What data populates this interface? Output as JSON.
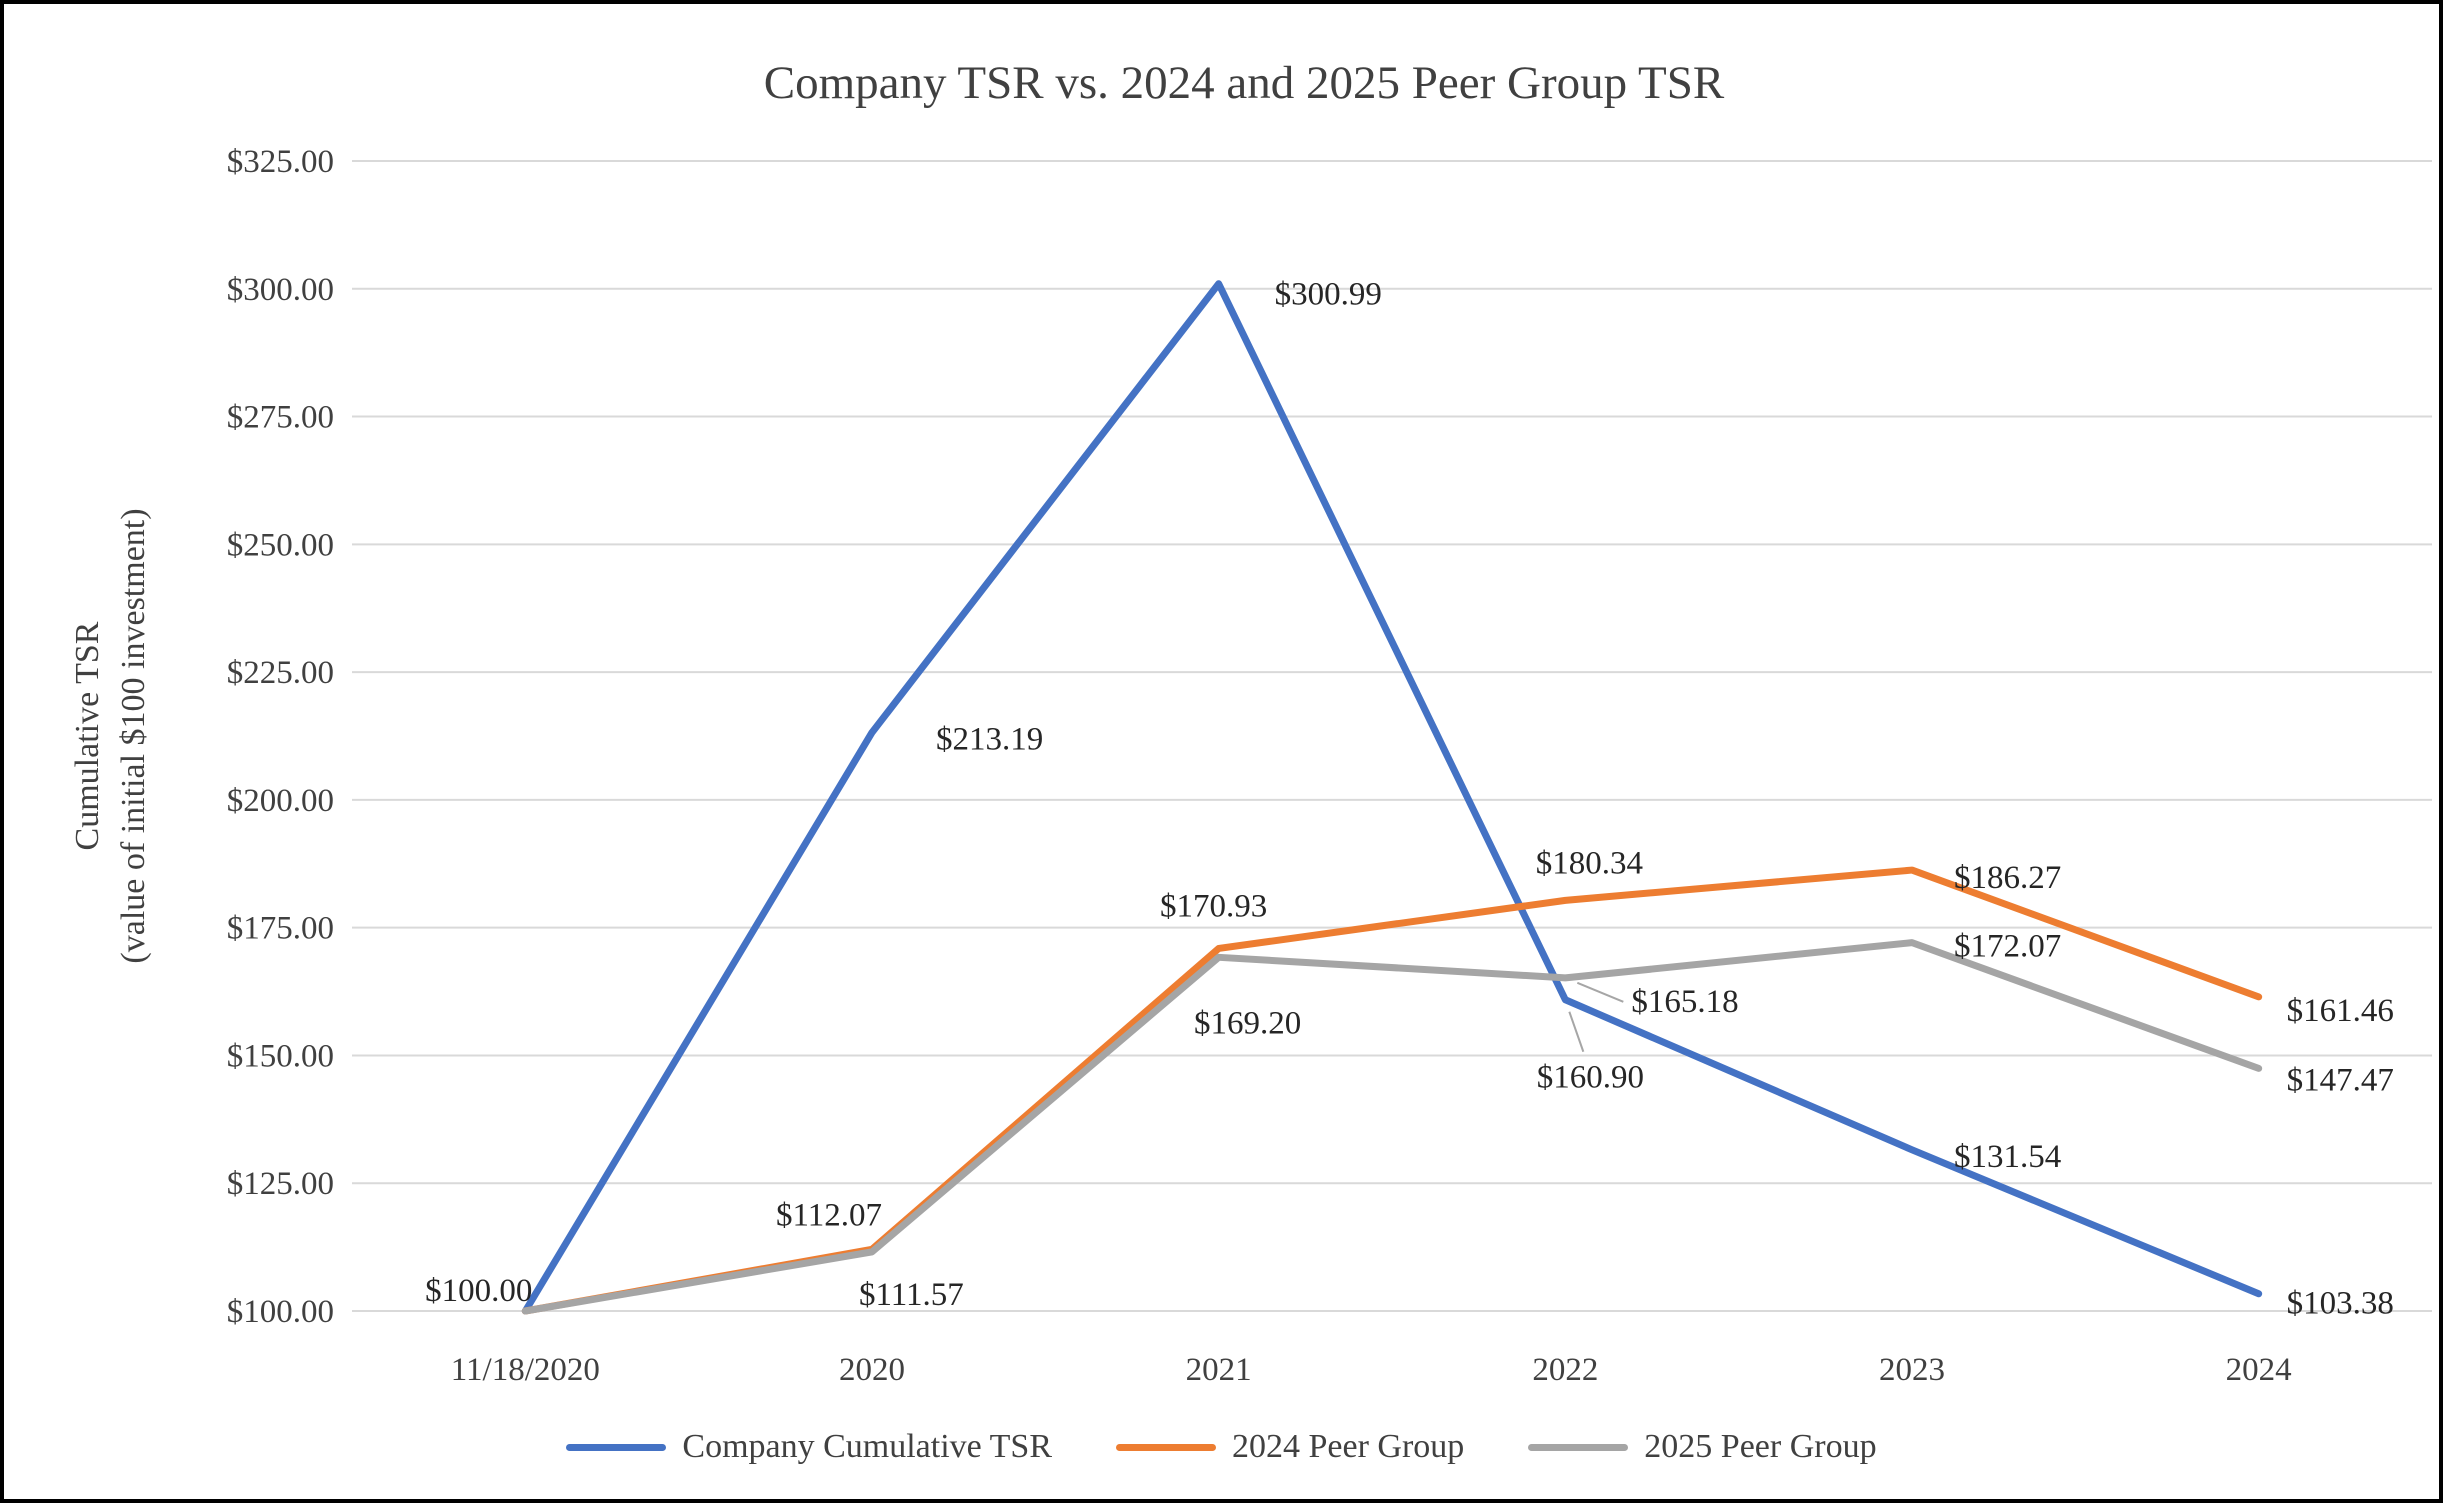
{
  "chart_data": {
    "type": "line",
    "title": "Company TSR vs. 2024 and 2025 Peer Group TSR",
    "ylabel_lines": [
      "Cumulative TSR",
      "(value of initial $100 investment)"
    ],
    "categories": [
      "11/18/2020",
      "2020",
      "2021",
      "2022",
      "2023",
      "2024"
    ],
    "series": [
      {
        "name": "Company Cumulative TSR",
        "color": "#4472C4",
        "values": [
          100.0,
          213.19,
          300.99,
          160.9,
          131.54,
          103.38
        ]
      },
      {
        "name": "2024 Peer Group",
        "color": "#ED7D31",
        "values": [
          100.0,
          112.07,
          170.93,
          180.34,
          186.27,
          161.46
        ]
      },
      {
        "name": "2025 Peer Group",
        "color": "#A5A5A5",
        "values": [
          100.0,
          111.57,
          169.2,
          165.18,
          172.07,
          147.47
        ]
      }
    ],
    "ylim": [
      100,
      325
    ],
    "ytick_step": 25,
    "value_prefix": "$",
    "grid": true,
    "legend_position": "bottom",
    "colors": {
      "gridline": "#D9D9D9",
      "axis_text": "#404040",
      "data_label_text": "#262626",
      "leader_line": "#A6A6A6",
      "frame_border": "#000000",
      "background": "#FFFFFF"
    }
  }
}
